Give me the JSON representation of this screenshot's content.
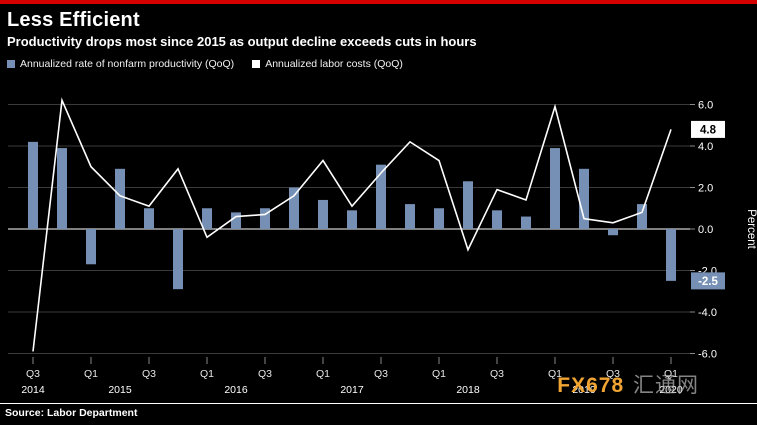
{
  "header": {
    "title": "Less Efficient",
    "subtitle": "Productivity drops most since 2015 as output decline exceeds cuts in hours"
  },
  "legend": [
    {
      "label": "Annualized rate of nonfarm productivity (QoQ)",
      "color": "#7590b4"
    },
    {
      "label": "Annualized labor costs (QoQ)",
      "color": "#ffffff"
    }
  ],
  "chart_data": {
    "type": "bar+line",
    "title": "Less Efficient",
    "subtitle": "Productivity drops most since 2015 as output decline exceeds cuts in hours",
    "ylabel": "Percent",
    "ylim": [
      -7,
      6.5
    ],
    "grid": true,
    "legend_position": "top-left",
    "x": [
      "2014 Q3",
      "2014 Q4",
      "2015 Q1",
      "2015 Q2",
      "2015 Q3",
      "2015 Q4",
      "2016 Q1",
      "2016 Q2",
      "2016 Q3",
      "2016 Q4",
      "2017 Q1",
      "2017 Q2",
      "2017 Q3",
      "2017 Q4",
      "2018 Q1",
      "2018 Q2",
      "2018 Q3",
      "2018 Q4",
      "2019 Q1",
      "2019 Q2",
      "2019 Q3",
      "2019 Q4",
      "2020 Q1"
    ],
    "series": [
      {
        "name": "Annualized rate of nonfarm productivity (QoQ)",
        "type": "bar",
        "color": "#7590b4",
        "values": [
          4.2,
          3.9,
          -1.7,
          2.9,
          1.0,
          -2.9,
          1.0,
          0.8,
          1.0,
          2.0,
          1.4,
          0.9,
          3.1,
          1.2,
          1.0,
          2.3,
          0.9,
          0.6,
          3.9,
          2.9,
          -0.3,
          1.2,
          -2.5
        ]
      },
      {
        "name": "Annualized labor costs (QoQ)",
        "type": "line",
        "color": "#ffffff",
        "values": [
          -5.9,
          6.2,
          3.0,
          1.6,
          1.1,
          2.9,
          -0.4,
          0.6,
          0.7,
          1.6,
          3.3,
          1.1,
          2.7,
          4.2,
          3.3,
          -1.0,
          1.9,
          1.4,
          5.9,
          0.5,
          0.3,
          0.8,
          4.8
        ]
      }
    ],
    "yticks": [
      {
        "v": 6,
        "label": "6.0"
      },
      {
        "v": 4,
        "label": "4.0"
      },
      {
        "v": 2,
        "label": "2.0"
      },
      {
        "v": 0,
        "label": "0.0"
      },
      {
        "v": -2,
        "label": "-2.0"
      },
      {
        "v": -4,
        "label": "-4.0"
      },
      {
        "v": -6,
        "label": "-6.0"
      }
    ],
    "x_axis": {
      "quarter_ticks": [
        {
          "index": 0,
          "label": "Q3"
        },
        {
          "index": 2,
          "label": "Q1"
        },
        {
          "index": 4,
          "label": "Q3"
        },
        {
          "index": 6,
          "label": "Q1"
        },
        {
          "index": 8,
          "label": "Q3"
        },
        {
          "index": 10,
          "label": "Q1"
        },
        {
          "index": 12,
          "label": "Q3"
        },
        {
          "index": 14,
          "label": "Q1"
        },
        {
          "index": 16,
          "label": "Q3"
        },
        {
          "index": 18,
          "label": "Q1"
        },
        {
          "index": 20,
          "label": "Q3"
        },
        {
          "index": 22,
          "label": "Q1"
        }
      ],
      "year_ticks": [
        {
          "index": 0,
          "label": "2014"
        },
        {
          "index": 3,
          "label": "2015"
        },
        {
          "index": 7,
          "label": "2016"
        },
        {
          "index": 11,
          "label": "2017"
        },
        {
          "index": 15,
          "label": "2018"
        },
        {
          "index": 19,
          "label": "2019"
        },
        {
          "index": 22,
          "label": "2020"
        }
      ]
    },
    "end_labels": [
      {
        "text": "4.8",
        "value": 4.8,
        "bg": "#ffffff",
        "fg": "#000000"
      },
      {
        "text": "-2.5",
        "value": -2.5,
        "bg": "#7590b4",
        "fg": "#ffffff"
      }
    ]
  },
  "source": "Source: Labor Department",
  "watermark": {
    "brand": "FX678",
    "cjk": "汇通网"
  }
}
